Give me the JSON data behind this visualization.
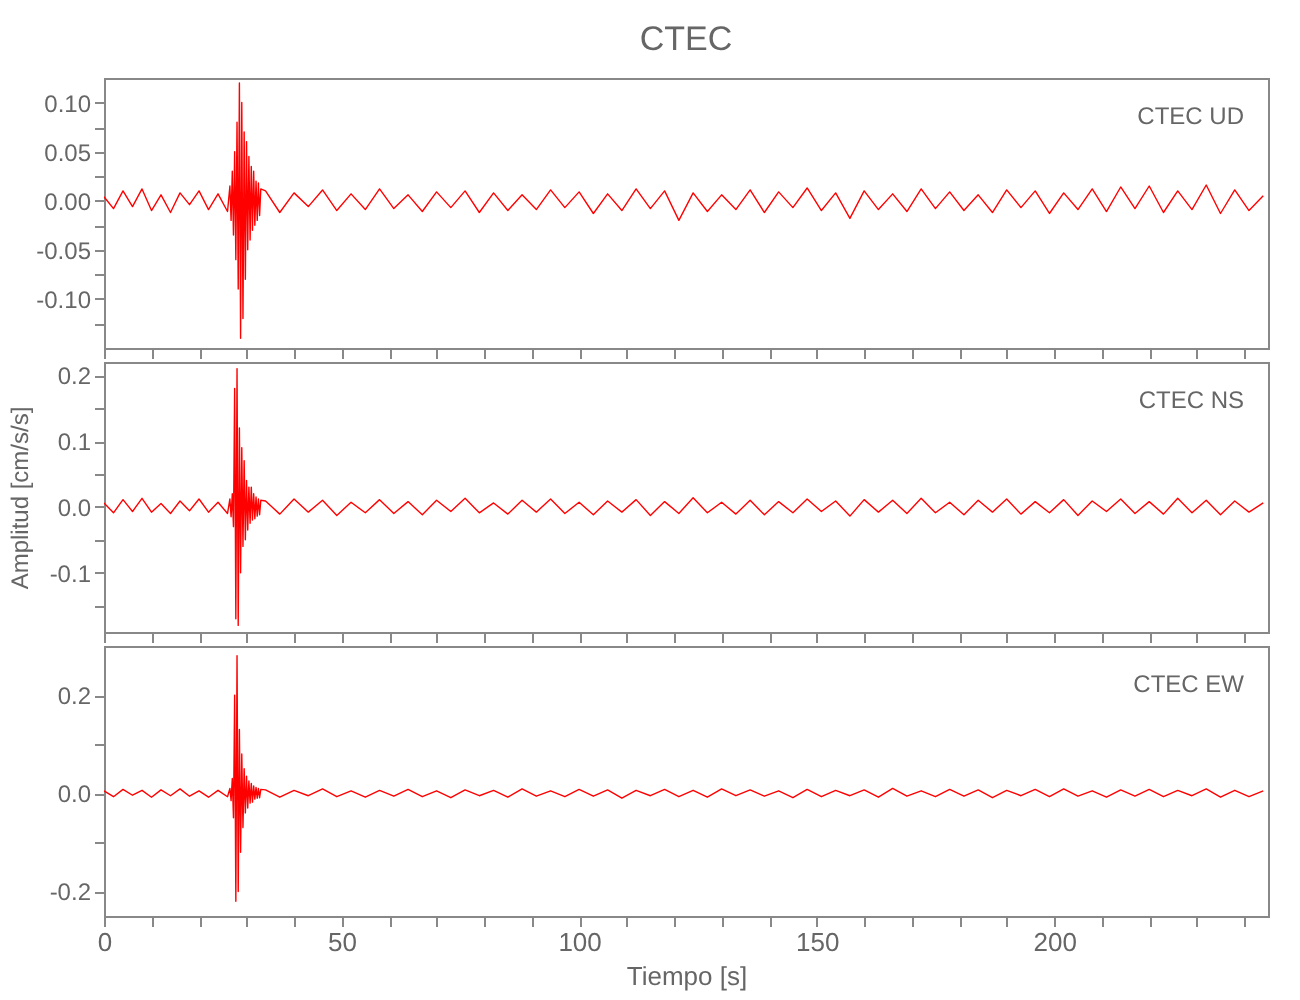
{
  "chart_data": [
    {
      "type": "line",
      "title": "CTEC",
      "annotations": [
        "CTEC   UD"
      ],
      "tick_labels": "y",
      "xlim": [
        0,
        245
      ],
      "ylim": [
        -0.15,
        0.125
      ],
      "xticks": [
        0,
        {
          "value": 10,
          "label": null
        },
        {
          "value": 20,
          "label": null
        },
        {
          "value": 30,
          "label": null
        },
        {
          "value": 40,
          "label": null
        },
        50,
        {
          "value": 60,
          "label": null
        },
        {
          "value": 70,
          "label": null
        },
        {
          "value": 80,
          "label": null
        },
        {
          "value": 90,
          "label": null
        },
        100,
        {
          "value": 110,
          "label": null
        },
        {
          "value": 120,
          "label": null
        },
        {
          "value": 130,
          "label": null
        },
        {
          "value": 140,
          "label": null
        },
        150,
        {
          "value": 160,
          "label": null
        },
        {
          "value": 170,
          "label": null
        },
        {
          "value": 180,
          "label": null
        },
        {
          "value": 190,
          "label": null
        },
        200,
        {
          "value": 210,
          "label": null
        },
        {
          "value": 220,
          "label": null
        },
        {
          "value": 230,
          "label": null
        },
        {
          "value": 240,
          "label": null
        }
      ],
      "yticks": [
        {
          "value": -0.125,
          "label": null
        },
        {
          "value": -0.1,
          "label": "-0.10"
        },
        {
          "value": -0.075,
          "label": null
        },
        {
          "value": -0.05,
          "label": "-0.05"
        },
        {
          "value": -0.025,
          "label": null
        },
        {
          "value": 0,
          "label": "0.00"
        },
        {
          "value": 0.025,
          "label": null
        },
        {
          "value": 0.05,
          "label": "0.05"
        },
        {
          "value": 0.075,
          "label": null
        },
        {
          "value": 0.1,
          "label": "0.10"
        }
      ],
      "x": [
        0,
        2,
        4,
        6,
        8,
        10,
        12,
        14,
        16,
        18,
        20,
        22,
        24,
        26,
        26.5,
        26.75,
        27,
        27.25,
        27.5,
        27.75,
        28,
        28.25,
        28.5,
        28.75,
        29,
        29.25,
        29.5,
        29.75,
        30,
        30.25,
        30.5,
        30.75,
        31,
        31.25,
        31.5,
        31.75,
        32,
        32.25,
        32.5,
        32.75,
        33,
        34,
        37,
        40,
        43,
        46,
        49,
        52,
        55,
        58,
        61,
        64,
        67,
        70,
        73,
        76,
        79,
        82,
        85,
        88,
        91,
        94,
        97,
        100,
        103,
        106,
        109,
        112,
        115,
        118,
        121,
        124,
        127,
        130,
        133,
        136,
        139,
        142,
        145,
        148,
        151,
        154,
        157,
        160,
        163,
        166,
        169,
        172,
        175,
        178,
        181,
        184,
        187,
        190,
        193,
        196,
        199,
        202,
        205,
        208,
        211,
        214,
        217,
        220,
        223,
        226,
        229,
        232,
        235,
        238,
        241,
        244
      ],
      "series": [
        {
          "color": "#ff0000",
          "values": [
            0.004,
            -0.008,
            0.01,
            -0.006,
            0.012,
            -0.01,
            0.006,
            -0.012,
            0.008,
            -0.004,
            0.01,
            -0.009,
            0.007,
            -0.011,
            0.015,
            -0.02,
            0.03,
            -0.035,
            0.05,
            -0.06,
            0.08,
            -0.09,
            0.12,
            -0.14,
            0.1,
            -0.12,
            0.07,
            -0.08,
            0.06,
            -0.05,
            0.045,
            -0.04,
            0.035,
            -0.03,
            0.03,
            -0.025,
            0.02,
            -0.02,
            0.018,
            -0.015,
            0.012,
            0.01,
            -0.012,
            0.008,
            -0.006,
            0.011,
            -0.01,
            0.007,
            -0.009,
            0.012,
            -0.008,
            0.006,
            -0.011,
            0.009,
            -0.007,
            0.01,
            -0.012,
            0.008,
            -0.01,
            0.006,
            -0.009,
            0.011,
            -0.007,
            0.009,
            -0.013,
            0.007,
            -0.01,
            0.012,
            -0.008,
            0.01,
            -0.02,
            0.008,
            -0.011,
            0.006,
            -0.009,
            0.011,
            -0.012,
            0.009,
            -0.007,
            0.013,
            -0.01,
            0.008,
            -0.018,
            0.01,
            -0.009,
            0.007,
            -0.011,
            0.012,
            -0.008,
            0.009,
            -0.01,
            0.006,
            -0.012,
            0.011,
            -0.007,
            0.01,
            -0.013,
            0.008,
            -0.009,
            0.012,
            -0.011,
            0.014,
            -0.008,
            0.015,
            -0.012,
            0.01,
            -0.009,
            0.016,
            -0.013,
            0.011,
            -0.01,
            0.005
          ]
        }
      ]
    },
    {
      "type": "line",
      "ylabel": "Amplitud [cm/s/s]",
      "annotations": [
        "CTEC   NS"
      ],
      "tick_labels": "y",
      "xlim": [
        0,
        245
      ],
      "ylim": [
        -0.19,
        0.22
      ],
      "xticks": [
        0,
        {
          "value": 10,
          "label": null
        },
        {
          "value": 20,
          "label": null
        },
        {
          "value": 30,
          "label": null
        },
        {
          "value": 40,
          "label": null
        },
        50,
        {
          "value": 60,
          "label": null
        },
        {
          "value": 70,
          "label": null
        },
        {
          "value": 80,
          "label": null
        },
        {
          "value": 90,
          "label": null
        },
        100,
        {
          "value": 110,
          "label": null
        },
        {
          "value": 120,
          "label": null
        },
        {
          "value": 130,
          "label": null
        },
        {
          "value": 140,
          "label": null
        },
        150,
        {
          "value": 160,
          "label": null
        },
        {
          "value": 170,
          "label": null
        },
        {
          "value": 180,
          "label": null
        },
        {
          "value": 190,
          "label": null
        },
        200,
        {
          "value": 210,
          "label": null
        },
        {
          "value": 220,
          "label": null
        },
        {
          "value": 230,
          "label": null
        },
        {
          "value": 240,
          "label": null
        }
      ],
      "yticks": [
        {
          "value": -0.15,
          "label": null
        },
        {
          "value": -0.1,
          "label": "-0.1"
        },
        {
          "value": -0.05,
          "label": null
        },
        {
          "value": 0,
          "label": "0.0"
        },
        {
          "value": 0.05,
          "label": null
        },
        {
          "value": 0.1,
          "label": "0.1"
        },
        {
          "value": 0.15,
          "label": null
        },
        {
          "value": 0.2,
          "label": "0.2"
        }
      ],
      "x": [
        0,
        2,
        4,
        6,
        8,
        10,
        12,
        14,
        16,
        18,
        20,
        22,
        24,
        26,
        26.5,
        26.75,
        27,
        27.25,
        27.5,
        27.75,
        28,
        28.25,
        28.5,
        28.75,
        29,
        29.25,
        29.5,
        29.75,
        30,
        30.25,
        30.5,
        30.75,
        31,
        31.25,
        31.5,
        31.75,
        32,
        32.25,
        32.5,
        32.75,
        33,
        34,
        37,
        40,
        43,
        46,
        49,
        52,
        55,
        58,
        61,
        64,
        67,
        70,
        73,
        76,
        79,
        82,
        85,
        88,
        91,
        94,
        97,
        100,
        103,
        106,
        109,
        112,
        115,
        118,
        121,
        124,
        127,
        130,
        133,
        136,
        139,
        142,
        145,
        148,
        151,
        154,
        157,
        160,
        163,
        166,
        169,
        172,
        175,
        178,
        181,
        184,
        187,
        190,
        193,
        196,
        199,
        202,
        205,
        208,
        211,
        214,
        217,
        220,
        223,
        226,
        229,
        232,
        235,
        238,
        241,
        244
      ],
      "series": [
        {
          "color": "#ff0000",
          "values": [
            0.006,
            -0.009,
            0.011,
            -0.007,
            0.013,
            -0.008,
            0.005,
            -0.01,
            0.009,
            -0.006,
            0.012,
            -0.008,
            0.007,
            -0.01,
            0.012,
            -0.015,
            0.02,
            -0.03,
            0.18,
            -0.17,
            0.21,
            -0.18,
            0.12,
            -0.1,
            0.09,
            -0.06,
            0.07,
            -0.05,
            0.04,
            -0.035,
            0.03,
            -0.025,
            0.03,
            -0.02,
            0.02,
            -0.018,
            0.015,
            -0.014,
            0.012,
            -0.012,
            0.01,
            0.009,
            -0.011,
            0.012,
            -0.008,
            0.01,
            -0.013,
            0.007,
            -0.009,
            0.011,
            -0.01,
            0.008,
            -0.012,
            0.01,
            -0.007,
            0.013,
            -0.009,
            0.006,
            -0.011,
            0.01,
            -0.008,
            0.012,
            -0.01,
            0.007,
            -0.012,
            0.009,
            -0.008,
            0.011,
            -0.013,
            0.008,
            -0.01,
            0.014,
            -0.009,
            0.007,
            -0.011,
            0.01,
            -0.012,
            0.008,
            -0.009,
            0.012,
            -0.007,
            0.009,
            -0.014,
            0.011,
            -0.008,
            0.01,
            -0.01,
            0.013,
            -0.009,
            0.007,
            -0.012,
            0.01,
            -0.008,
            0.012,
            -0.011,
            0.008,
            -0.009,
            0.011,
            -0.013,
            0.009,
            -0.007,
            0.012,
            -0.01,
            0.008,
            -0.011,
            0.013,
            -0.009,
            0.01,
            -0.012,
            0.009,
            -0.008,
            0.006
          ]
        }
      ]
    },
    {
      "type": "line",
      "xlabel": "Tiempo [s]",
      "annotations": [
        "CTEC   EW"
      ],
      "xlim": [
        0,
        245
      ],
      "ylim": [
        -0.25,
        0.3
      ],
      "xticks": [
        0,
        {
          "value": 10,
          "label": null
        },
        {
          "value": 20,
          "label": null
        },
        {
          "value": 30,
          "label": null
        },
        {
          "value": 40,
          "label": null
        },
        50,
        {
          "value": 60,
          "label": null
        },
        {
          "value": 70,
          "label": null
        },
        {
          "value": 80,
          "label": null
        },
        {
          "value": 90,
          "label": null
        },
        100,
        {
          "value": 110,
          "label": null
        },
        {
          "value": 120,
          "label": null
        },
        {
          "value": 130,
          "label": null
        },
        {
          "value": 140,
          "label": null
        },
        150,
        {
          "value": 160,
          "label": null
        },
        {
          "value": 170,
          "label": null
        },
        {
          "value": 180,
          "label": null
        },
        {
          "value": 190,
          "label": null
        },
        200,
        {
          "value": 210,
          "label": null
        },
        {
          "value": 220,
          "label": null
        },
        {
          "value": 230,
          "label": null
        },
        {
          "value": 240,
          "label": null
        }
      ],
      "yticks": [
        {
          "value": -0.2,
          "label": "-0.2"
        },
        {
          "value": -0.1,
          "label": null
        },
        {
          "value": 0,
          "label": "0.0"
        },
        {
          "value": 0.1,
          "label": null
        },
        {
          "value": 0.2,
          "label": "0.2"
        }
      ],
      "x": [
        0,
        2,
        4,
        6,
        8,
        10,
        12,
        14,
        16,
        18,
        20,
        22,
        24,
        26,
        26.5,
        26.75,
        27,
        27.25,
        27.5,
        27.75,
        28,
        28.25,
        28.5,
        28.75,
        29,
        29.25,
        29.5,
        29.75,
        30,
        30.25,
        30.5,
        30.75,
        31,
        31.25,
        31.5,
        31.75,
        32,
        32.25,
        32.5,
        32.75,
        33,
        34,
        37,
        40,
        43,
        46,
        49,
        52,
        55,
        58,
        61,
        64,
        67,
        70,
        73,
        76,
        79,
        82,
        85,
        88,
        91,
        94,
        97,
        100,
        103,
        106,
        109,
        112,
        115,
        118,
        121,
        124,
        127,
        130,
        133,
        136,
        139,
        142,
        145,
        148,
        151,
        154,
        157,
        160,
        163,
        166,
        169,
        172,
        175,
        178,
        181,
        184,
        187,
        190,
        193,
        196,
        199,
        202,
        205,
        208,
        211,
        214,
        217,
        220,
        223,
        226,
        229,
        232,
        235,
        238,
        241,
        244
      ],
      "series": [
        {
          "color": "#ff0000",
          "values": [
            0.005,
            -0.007,
            0.008,
            -0.004,
            0.006,
            -0.008,
            0.007,
            -0.005,
            0.009,
            -0.006,
            0.005,
            -0.008,
            0.006,
            -0.007,
            0.01,
            -0.015,
            0.03,
            -0.05,
            0.2,
            -0.22,
            0.28,
            -0.2,
            0.13,
            -0.12,
            0.08,
            -0.07,
            0.05,
            -0.04,
            0.035,
            -0.03,
            0.025,
            -0.02,
            0.02,
            -0.018,
            0.015,
            -0.012,
            0.012,
            -0.01,
            0.01,
            -0.009,
            0.008,
            0.007,
            -0.008,
            0.006,
            -0.005,
            0.009,
            -0.007,
            0.005,
            -0.008,
            0.006,
            -0.006,
            0.008,
            -0.007,
            0.005,
            -0.009,
            0.007,
            -0.005,
            0.006,
            -0.008,
            0.009,
            -0.006,
            0.005,
            -0.007,
            0.008,
            -0.006,
            0.007,
            -0.01,
            0.006,
            -0.005,
            0.008,
            -0.007,
            0.006,
            -0.008,
            0.009,
            -0.005,
            0.007,
            -0.006,
            0.005,
            -0.009,
            0.008,
            -0.007,
            0.006,
            -0.005,
            0.007,
            -0.008,
            0.01,
            -0.006,
            0.005,
            -0.007,
            0.008,
            -0.006,
            0.007,
            -0.009,
            0.006,
            -0.005,
            0.008,
            -0.007,
            0.009,
            -0.006,
            0.005,
            -0.008,
            0.007,
            -0.006,
            0.008,
            -0.007,
            0.006,
            -0.005,
            0.009,
            -0.008,
            0.006,
            -0.007,
            0.005
          ]
        }
      ]
    }
  ]
}
